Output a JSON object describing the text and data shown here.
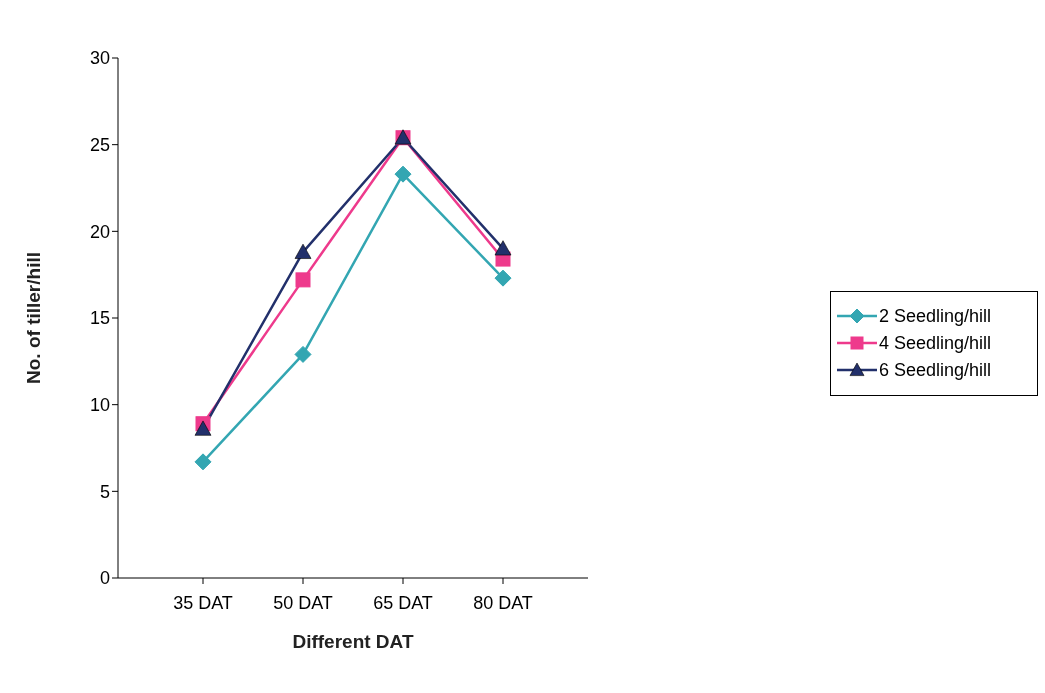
{
  "chart_data": {
    "type": "line",
    "xlabel": "Different DAT",
    "ylabel": "No. of tiller/hill",
    "categories": [
      "35 DAT",
      "50 DAT",
      "65 DAT",
      "80 DAT"
    ],
    "series": [
      {
        "name": "2 Seedling/hill",
        "color": "#33a6b2",
        "marker": "diamond",
        "values": [
          6.7,
          12.9,
          23.3,
          17.3
        ]
      },
      {
        "name": "4 Seedling/hill",
        "color": "#ee3a8c",
        "marker": "square",
        "values": [
          8.9,
          17.2,
          25.4,
          18.4
        ]
      },
      {
        "name": "6 Seedling/hill",
        "color": "#22306b",
        "marker": "triangle",
        "values": [
          8.6,
          18.8,
          25.4,
          19.0
        ]
      }
    ],
    "ylim": [
      0,
      30
    ],
    "yticks": [
      0,
      5,
      10,
      15,
      20,
      25,
      30
    ],
    "legend": "right"
  }
}
